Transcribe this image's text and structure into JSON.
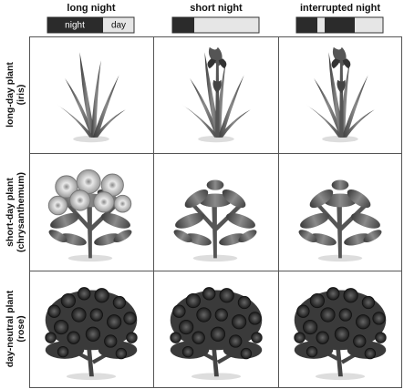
{
  "header": {
    "columns": [
      "long night",
      "short night",
      "interrupted night"
    ]
  },
  "legend": {
    "night": "night",
    "day": "day"
  },
  "rows": [
    {
      "label": [
        "long-day plant",
        "(iris)"
      ]
    },
    {
      "label": [
        "short-day plant",
        "(chrysanthemum)"
      ]
    },
    {
      "label": [
        "day-neutral plant",
        "(rose)"
      ]
    }
  ]
}
